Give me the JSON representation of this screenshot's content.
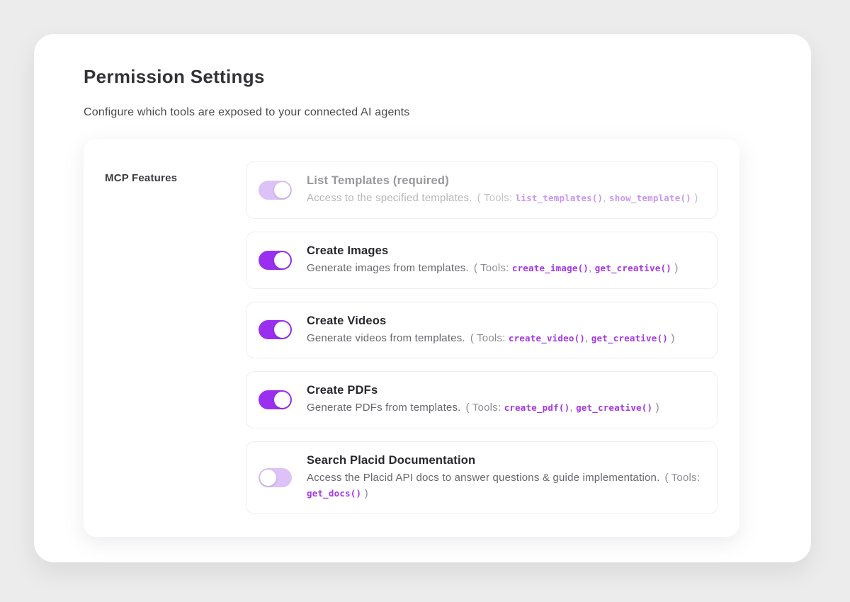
{
  "header": {
    "title": "Permission Settings",
    "subtitle": "Configure which tools are exposed to your connected AI agents"
  },
  "panel": {
    "section_label": "MCP Features"
  },
  "tools_prefix": "( Tools:",
  "tools_separator": ", ",
  "tools_suffix": ")",
  "features": [
    {
      "name": "List Templates (required)",
      "description": "Access to the specified templates.",
      "tools": [
        "list_templates()",
        "show_template()"
      ],
      "enabled": true,
      "required": true
    },
    {
      "name": "Create Images",
      "description": "Generate images from templates.",
      "tools": [
        "create_image()",
        "get_creative()"
      ],
      "enabled": true,
      "required": false
    },
    {
      "name": "Create Videos",
      "description": "Generate videos from templates.",
      "tools": [
        "create_video()",
        "get_creative()"
      ],
      "enabled": true,
      "required": false
    },
    {
      "name": "Create PDFs",
      "description": "Generate PDFs from templates.",
      "tools": [
        "create_pdf()",
        "get_creative()"
      ],
      "enabled": true,
      "required": false
    },
    {
      "name": "Search Placid Documentation",
      "description": "Access the Placid API docs to answer questions & guide implementation.",
      "tools": [
        "get_docs()"
      ],
      "enabled": false,
      "required": false
    }
  ],
  "colors": {
    "toggle_on": "#9b2ff0",
    "toggle_off_track": "#dcc2f6",
    "tool_code_text": "#a435e5",
    "page_background": "#ececec"
  }
}
